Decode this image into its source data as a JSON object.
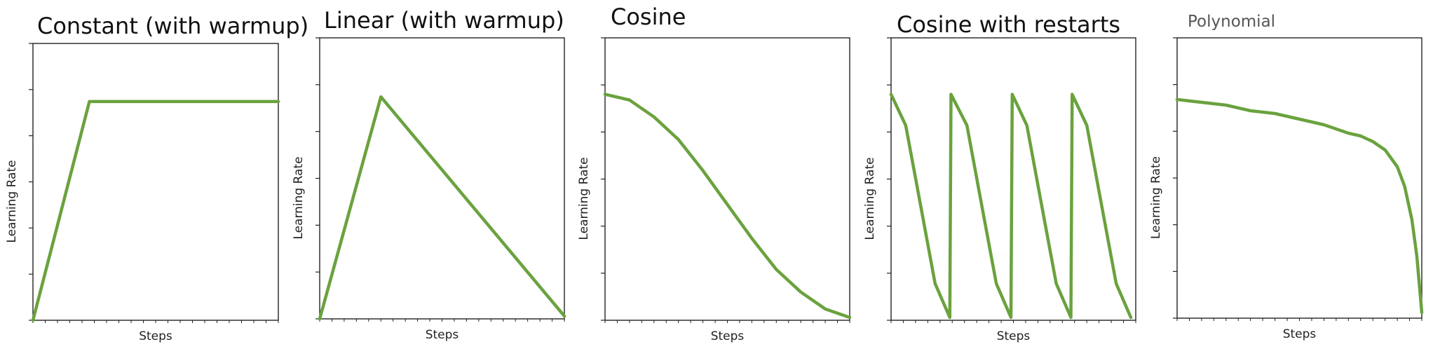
{
  "chart_data": [
    {
      "type": "line",
      "title": "Constant (with warmup)",
      "xlabel": "Steps",
      "ylabel": "Learning Rate",
      "xlim": [
        0,
        1
      ],
      "ylim": [
        0,
        1
      ],
      "grid": false,
      "x": [
        0,
        0.23,
        1
      ],
      "series": [
        {
          "values": [
            0,
            0.79,
            0.79
          ]
        }
      ],
      "color": "#6aa23e"
    },
    {
      "type": "line",
      "title": "Linear (with warmup)",
      "xlabel": "Steps",
      "ylabel": "Learning Rate",
      "xlim": [
        0,
        1
      ],
      "ylim": [
        0,
        1
      ],
      "grid": false,
      "x": [
        0,
        0.25,
        1
      ],
      "series": [
        {
          "values": [
            0,
            0.79,
            0.01
          ]
        }
      ],
      "color": "#6aa23e"
    },
    {
      "type": "line",
      "title": "Cosine",
      "xlabel": "Steps",
      "ylabel": "Learning Rate",
      "xlim": [
        0,
        1
      ],
      "ylim": [
        0,
        1
      ],
      "grid": false,
      "x": [
        0,
        0.1,
        0.2,
        0.3,
        0.4,
        0.5,
        0.6,
        0.7,
        0.8,
        0.9,
        1
      ],
      "series": [
        {
          "values": [
            0.8,
            0.78,
            0.72,
            0.64,
            0.53,
            0.41,
            0.29,
            0.18,
            0.1,
            0.04,
            0.01
          ]
        }
      ],
      "color": "#6aa23e"
    },
    {
      "type": "line",
      "title": "Cosine with restarts",
      "xlabel": "Steps",
      "ylabel": "Learning Rate",
      "xlim": [
        0,
        1
      ],
      "ylim": [
        0,
        1
      ],
      "grid": false,
      "x": [
        0,
        0.06,
        0.12,
        0.18,
        0.24,
        0.245,
        0.31,
        0.37,
        0.43,
        0.49,
        0.495,
        0.555,
        0.615,
        0.675,
        0.735,
        0.74,
        0.8,
        0.86,
        0.92,
        0.98
      ],
      "series": [
        {
          "values": [
            0.8,
            0.69,
            0.41,
            0.13,
            0.01,
            0.8,
            0.69,
            0.41,
            0.13,
            0.01,
            0.8,
            0.69,
            0.41,
            0.13,
            0.01,
            0.8,
            0.69,
            0.41,
            0.13,
            0.01
          ]
        }
      ],
      "color": "#6aa23e"
    },
    {
      "type": "line",
      "title": "Polynomial",
      "xlabel": "Steps",
      "ylabel": "Learning Rate",
      "xlim": [
        0,
        1
      ],
      "ylim": [
        0,
        1
      ],
      "grid": false,
      "x": [
        0,
        0.1,
        0.2,
        0.3,
        0.4,
        0.5,
        0.6,
        0.7,
        0.75,
        0.8,
        0.85,
        0.9,
        0.93,
        0.96,
        0.98,
        0.99,
        1
      ],
      "series": [
        {
          "values": [
            0.78,
            0.77,
            0.76,
            0.74,
            0.73,
            0.71,
            0.69,
            0.66,
            0.65,
            0.63,
            0.6,
            0.54,
            0.47,
            0.35,
            0.22,
            0.12,
            0.02
          ]
        }
      ],
      "color": "#6aa23e"
    }
  ]
}
